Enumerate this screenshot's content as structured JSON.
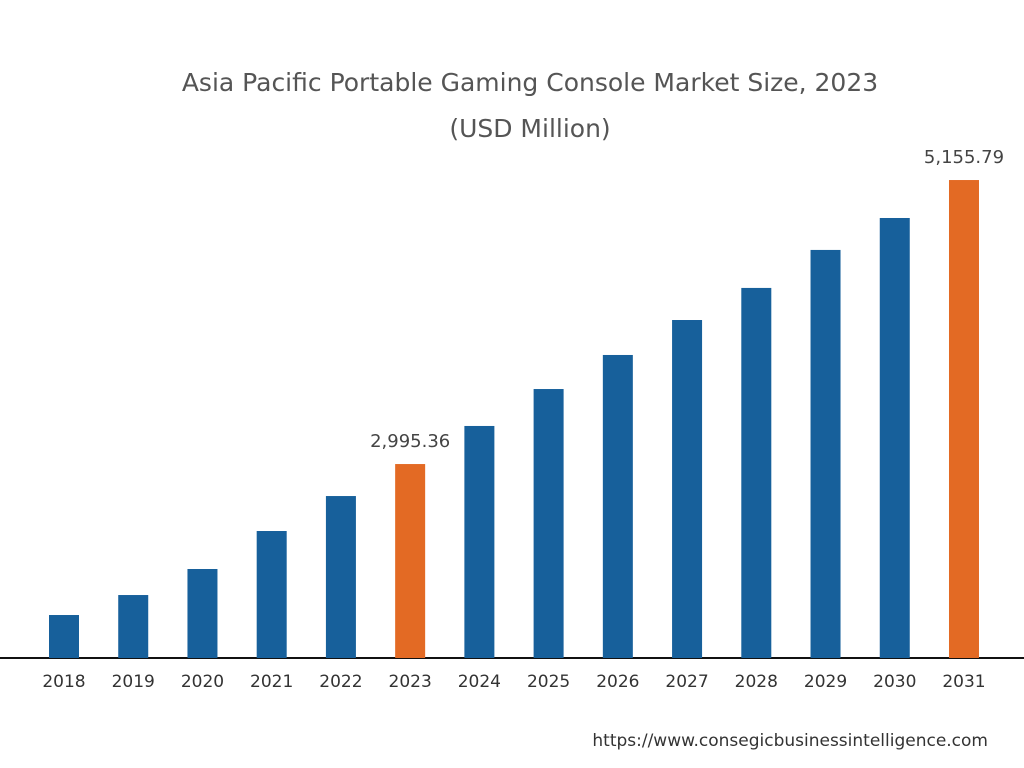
{
  "chart_data": {
    "type": "bar",
    "title": "Asia Pacific Portable Gaming Console Market Size, 2023",
    "subtitle": "(USD Million)",
    "categories": [
      "2018",
      "2019",
      "2020",
      "2021",
      "2022",
      "2023",
      "2024",
      "2025",
      "2026",
      "2027",
      "2028",
      "2029",
      "2030",
      "2031"
    ],
    "values": [
      1847,
      1999,
      2197,
      2486,
      2752,
      2995.36,
      3285,
      3566,
      3825,
      4091,
      4335,
      4624,
      4867,
      5155.79
    ],
    "value_labels": [
      null,
      null,
      null,
      null,
      null,
      "2,995.36",
      null,
      null,
      null,
      null,
      null,
      null,
      null,
      "5,155.79"
    ],
    "colors": [
      "#17609b",
      "#17609b",
      "#17609b",
      "#17609b",
      "#17609b",
      "#e36a24",
      "#17609b",
      "#17609b",
      "#17609b",
      "#17609b",
      "#17609b",
      "#17609b",
      "#17609b",
      "#e36a24"
    ],
    "ylim": [
      1520,
      5156
    ]
  },
  "footer": {
    "url": "https://www.consegicbusinessintelligence.com"
  }
}
